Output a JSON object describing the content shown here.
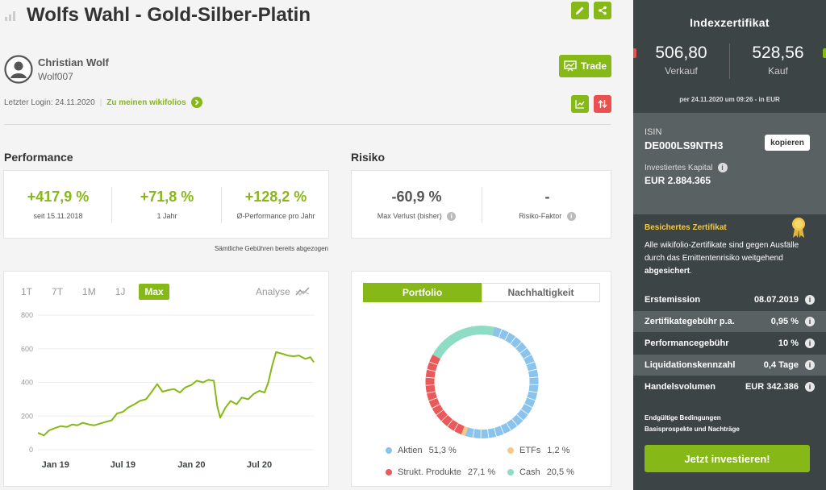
{
  "header": {
    "title": "Wolfs Wahl - Gold-Silber-Platin"
  },
  "trader": {
    "name": "Christian Wolf",
    "nickname": "Wolf007"
  },
  "login": {
    "text": "Letzter Login: 24.11.2020",
    "separator": "|",
    "link": "Zu meinen wikifolios"
  },
  "trade_button": "Trade",
  "performance": {
    "heading": "Performance",
    "items": [
      {
        "value": "+417,9 %",
        "label": "seit 15.11.2018"
      },
      {
        "value": "+71,8 %",
        "label": "1 Jahr"
      },
      {
        "value": "+128,2 %",
        "label": "Ø-Performance pro Jahr"
      }
    ],
    "fees_note": "Sämtliche Gebühren bereits abgezogen"
  },
  "risiko": {
    "heading": "Risiko",
    "items": [
      {
        "value": "-60,9 %",
        "label": "Max Verlust (bisher)"
      },
      {
        "value": "-",
        "label": "Risiko-Faktor"
      }
    ]
  },
  "chart_tabs": [
    "1T",
    "7T",
    "1M",
    "1J",
    "Max"
  ],
  "chart_active_tab": "Max",
  "analyse_label": "Analyse",
  "chart_data": {
    "type": "line",
    "x": [
      "2018-11-15",
      "2018-12-01",
      "2018-12-15",
      "2019-01-01",
      "2019-01-15",
      "2019-02-01",
      "2019-02-15",
      "2019-03-01",
      "2019-03-15",
      "2019-04-01",
      "2019-04-15",
      "2019-05-01",
      "2019-05-15",
      "2019-06-01",
      "2019-06-15",
      "2019-07-01",
      "2019-07-15",
      "2019-08-01",
      "2019-08-15",
      "2019-09-01",
      "2019-09-15",
      "2019-10-01",
      "2019-10-15",
      "2019-11-01",
      "2019-11-15",
      "2019-12-01",
      "2019-12-15",
      "2020-01-01",
      "2020-01-15",
      "2020-02-01",
      "2020-02-15",
      "2020-03-01",
      "2020-03-10",
      "2020-03-18",
      "2020-04-01",
      "2020-04-15",
      "2020-05-01",
      "2020-05-15",
      "2020-06-01",
      "2020-06-15",
      "2020-07-01",
      "2020-07-15",
      "2020-07-25",
      "2020-08-05",
      "2020-08-15",
      "2020-09-01",
      "2020-09-15",
      "2020-10-01",
      "2020-10-15",
      "2020-11-01",
      "2020-11-15",
      "2020-11-24"
    ],
    "series": [
      {
        "values": [
          100,
          85,
          115,
          130,
          140,
          135,
          150,
          145,
          160,
          150,
          145,
          155,
          165,
          175,
          215,
          225,
          250,
          270,
          290,
          300,
          340,
          390,
          345,
          355,
          360,
          340,
          370,
          385,
          410,
          400,
          415,
          410,
          260,
          190,
          250,
          290,
          270,
          310,
          300,
          330,
          350,
          340,
          400,
          505,
          580,
          570,
          560,
          555,
          560,
          540,
          550,
          520
        ]
      }
    ],
    "ylim": [
      0,
      800
    ],
    "yticks": [
      "800",
      "600",
      "400",
      "200",
      "0"
    ],
    "xticks": [
      "Jan 19",
      "Jul 19",
      "Jan 20",
      "Jul 20"
    ],
    "grid": true
  },
  "portfolio_tabs": [
    "Portfolio",
    "Nachhaltigkeit"
  ],
  "portfolio": {
    "type": "pie",
    "slices": [
      {
        "name": "Aktien",
        "pct": 51.3,
        "label": "51,3 %",
        "color": "#8ac4ec"
      },
      {
        "name": "ETFs",
        "pct": 1.2,
        "label": "1,2 %",
        "color": "#f5c98a"
      },
      {
        "name": "Strukt. Produkte",
        "pct": 27.1,
        "label": "27,1 %",
        "color": "#ea5a5a"
      },
      {
        "name": "Cash",
        "pct": 20.5,
        "label": "20,5 %",
        "color": "#8fdcc4"
      }
    ]
  },
  "sidebar": {
    "title": "Indexzertifikat",
    "sell_value": "506,80",
    "sell_label": "Verkauf",
    "buy_value": "528,56",
    "buy_label": "Kauf",
    "as_of": "per 24.11.2020 um 09:26 - in EUR",
    "isin_label": "ISIN",
    "isin": "DE000LS9NTH3",
    "copy_button": "kopieren",
    "capital_label": "Investiertes Kapital",
    "capital": "EUR 2.884.365",
    "secured_title": "Besichertes Zertifikat",
    "secured_text": "Alle wikifolio-Zertifikate sind gegen Ausfälle durch das Emittentenrisiko weitgehend",
    "secured_bold": "abgesichert",
    "secured_end": ".",
    "rows": [
      {
        "label": "Erstemission",
        "value": "08.07.2019"
      },
      {
        "label": "Zertifikategebühr p.a.",
        "value": "0,95 %"
      },
      {
        "label": "Performancegebühr",
        "value": "10 %"
      },
      {
        "label": "Liquidationskennzahl",
        "value": "0,4 Tage"
      },
      {
        "label": "Handelsvolumen",
        "value": "EUR 342.386"
      }
    ],
    "link1": "Endgültige Bedingungen",
    "link2": "Basisprospekte und Nachträge",
    "invest_button": "Jetzt investieren!"
  },
  "colors": {
    "accent": "#86b817",
    "sidebar_bg": "#3d4445",
    "sidebar_mid": "#5a6162",
    "negative": "#e9504f"
  }
}
